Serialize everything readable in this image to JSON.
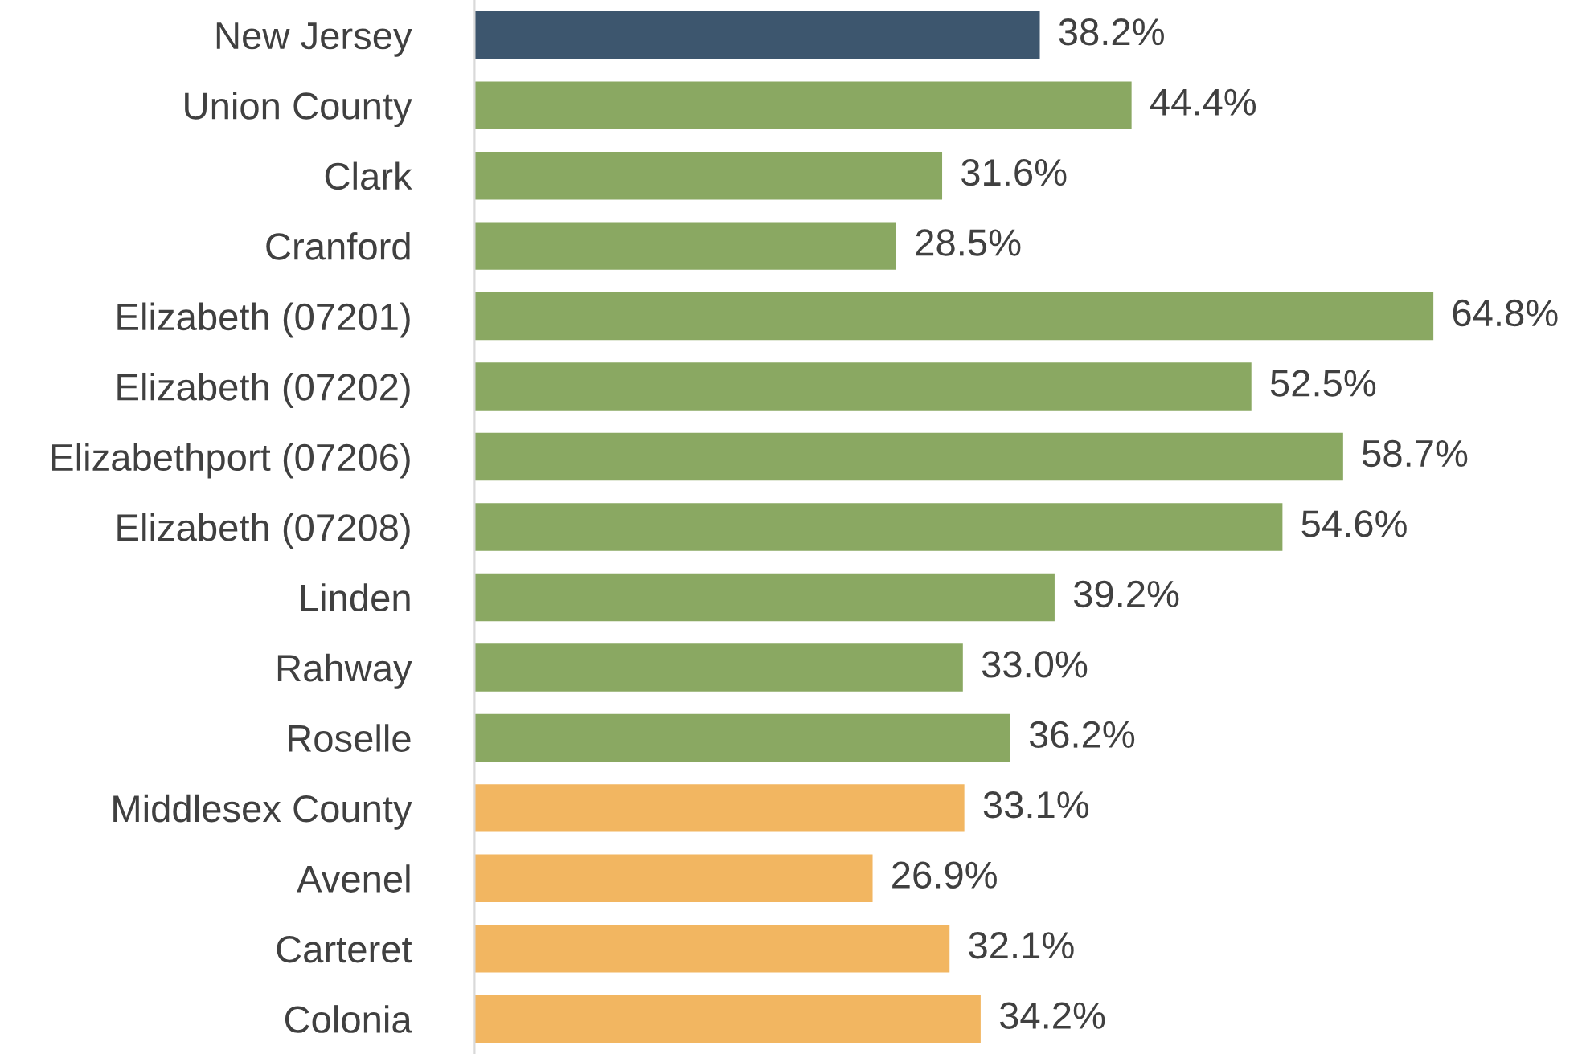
{
  "chart_data": {
    "type": "bar",
    "orientation": "horizontal",
    "value_labels": [
      "38.2%",
      "44.4%",
      "31.6%",
      "28.5%",
      "64.8%",
      "52.5%",
      "58.7%",
      "54.6%",
      "39.2%",
      "33.0%",
      "36.2%",
      "33.1%",
      "26.9%",
      "32.1%",
      "34.2%"
    ],
    "tick_labels": "y",
    "grid": false,
    "legend": false,
    "categories": [
      "New Jersey",
      "Union County",
      "Clark",
      "Cranford",
      "Elizabeth (07201)",
      "Elizabeth (07202)",
      "Elizabethport (07206)",
      "Elizabeth (07208)",
      "Linden",
      "Rahway",
      "Roselle",
      "Middlesex County",
      "Avenel",
      "Carteret",
      "Colonia"
    ],
    "values": [
      38.2,
      44.4,
      31.6,
      28.5,
      64.8,
      52.5,
      58.7,
      54.6,
      39.2,
      33.0,
      36.2,
      33.1,
      26.9,
      32.1,
      34.2
    ],
    "colors": [
      "#3d566e",
      "#8aa862",
      "#8aa862",
      "#8aa862",
      "#8aa862",
      "#8aa862",
      "#8aa862",
      "#8aa862",
      "#8aa862",
      "#8aa862",
      "#8aa862",
      "#f2b661",
      "#f2b661",
      "#f2b661",
      "#f2b661"
    ]
  }
}
